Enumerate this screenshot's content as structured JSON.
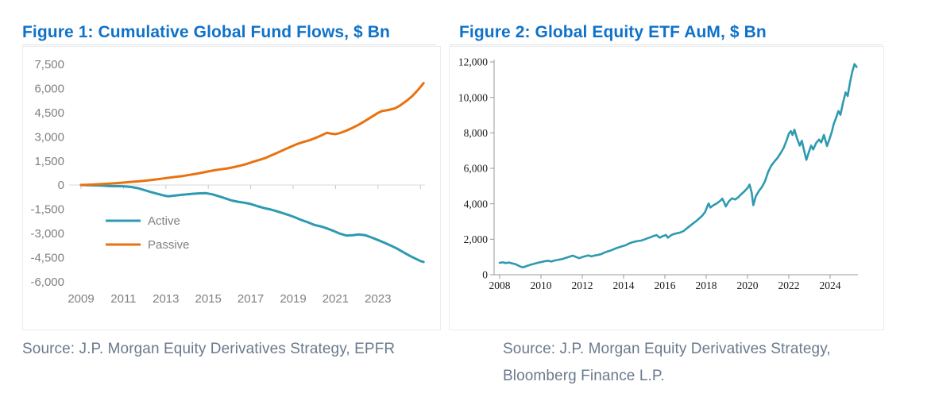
{
  "theme": {
    "title_color": "#0F72C9",
    "source_color": "#6B7A8D",
    "axis_label_gray": "#808080",
    "axis_label_dark": "#1A1A1A",
    "active_color": "#2E9AB0",
    "passive_color": "#E8720F",
    "etf_line_color": "#2E9AB0",
    "rule_color": "#DCDFE3",
    "card_border": "#ECECEC",
    "axis_line_fig1": "#D9D9D9",
    "axis_tick_fig1": "#C9C9C9",
    "axis_line_fig2": "#9A9A9A"
  },
  "figures": [
    {
      "title": "Figure 1: Cumulative Global Fund Flows, $ Bn",
      "source_lines": [
        "Source: J.P. Morgan Equity Derivatives Strategy, EPFR"
      ]
    },
    {
      "title": "Figure 2: Global Equity ETF AuM, $ Bn",
      "source_lines": [
        "Source: J.P. Morgan Equity Derivatives Strategy,",
        "Bloomberg Finance L.P."
      ]
    }
  ],
  "chart_data": [
    {
      "type": "line",
      "title": "Figure 1: Cumulative Global Fund Flows, $ Bn",
      "xlabel": "",
      "ylabel": "",
      "xlim": [
        2008.8,
        2025.3
      ],
      "ylim": [
        -6000,
        7500
      ],
      "x_ticks": [
        2009,
        2011,
        2013,
        2015,
        2017,
        2019,
        2021,
        2023
      ],
      "y_ticks": [
        7500,
        6000,
        4500,
        3000,
        1500,
        0,
        -1500,
        -3000,
        -4500,
        -6000
      ],
      "grid": false,
      "legend": {
        "position": "inside-left",
        "entries": [
          "Active",
          "Passive"
        ]
      },
      "series": [
        {
          "name": "Active",
          "color": "#2E9AB0",
          "points": [
            [
              2009.0,
              0
            ],
            [
              2009.3,
              -12
            ],
            [
              2009.6,
              -22
            ],
            [
              2009.9,
              -30
            ],
            [
              2010.2,
              -55
            ],
            [
              2010.5,
              -75
            ],
            [
              2010.8,
              -70
            ],
            [
              2011.1,
              -92
            ],
            [
              2011.4,
              -130
            ],
            [
              2011.7,
              -200
            ],
            [
              2012.0,
              -320
            ],
            [
              2012.3,
              -440
            ],
            [
              2012.6,
              -550
            ],
            [
              2012.9,
              -650
            ],
            [
              2013.1,
              -700
            ],
            [
              2013.4,
              -660
            ],
            [
              2013.7,
              -615
            ],
            [
              2014.0,
              -580
            ],
            [
              2014.3,
              -545
            ],
            [
              2014.6,
              -520
            ],
            [
              2014.9,
              -510
            ],
            [
              2015.2,
              -580
            ],
            [
              2015.5,
              -700
            ],
            [
              2015.8,
              -830
            ],
            [
              2016.1,
              -960
            ],
            [
              2016.4,
              -1040
            ],
            [
              2016.7,
              -1100
            ],
            [
              2017.0,
              -1180
            ],
            [
              2017.3,
              -1310
            ],
            [
              2017.6,
              -1420
            ],
            [
              2017.9,
              -1510
            ],
            [
              2018.2,
              -1620
            ],
            [
              2018.5,
              -1740
            ],
            [
              2018.8,
              -1870
            ],
            [
              2019.1,
              -2020
            ],
            [
              2019.4,
              -2180
            ],
            [
              2019.7,
              -2320
            ],
            [
              2020.0,
              -2480
            ],
            [
              2020.3,
              -2570
            ],
            [
              2020.6,
              -2700
            ],
            [
              2020.9,
              -2850
            ],
            [
              2021.2,
              -3020
            ],
            [
              2021.5,
              -3140
            ],
            [
              2021.8,
              -3120
            ],
            [
              2022.1,
              -3070
            ],
            [
              2022.4,
              -3120
            ],
            [
              2022.7,
              -3260
            ],
            [
              2023.0,
              -3420
            ],
            [
              2023.3,
              -3580
            ],
            [
              2023.6,
              -3760
            ],
            [
              2023.9,
              -3950
            ],
            [
              2024.2,
              -4180
            ],
            [
              2024.5,
              -4400
            ],
            [
              2024.8,
              -4600
            ],
            [
              2025.0,
              -4720
            ],
            [
              2025.15,
              -4780
            ]
          ]
        },
        {
          "name": "Passive",
          "color": "#E8720F",
          "points": [
            [
              2009.0,
              5
            ],
            [
              2009.3,
              15
            ],
            [
              2009.6,
              30
            ],
            [
              2009.9,
              55
            ],
            [
              2010.2,
              75
            ],
            [
              2010.5,
              100
            ],
            [
              2010.8,
              130
            ],
            [
              2011.1,
              165
            ],
            [
              2011.4,
              195
            ],
            [
              2011.7,
              225
            ],
            [
              2012.0,
              265
            ],
            [
              2012.3,
              310
            ],
            [
              2012.6,
              355
            ],
            [
              2012.9,
              410
            ],
            [
              2013.2,
              465
            ],
            [
              2013.5,
              515
            ],
            [
              2013.8,
              560
            ],
            [
              2014.1,
              625
            ],
            [
              2014.4,
              690
            ],
            [
              2014.7,
              765
            ],
            [
              2015.0,
              845
            ],
            [
              2015.3,
              920
            ],
            [
              2015.6,
              975
            ],
            [
              2015.9,
              1030
            ],
            [
              2016.2,
              1110
            ],
            [
              2016.5,
              1200
            ],
            [
              2016.8,
              1305
            ],
            [
              2017.1,
              1440
            ],
            [
              2017.4,
              1560
            ],
            [
              2017.7,
              1685
            ],
            [
              2018.0,
              1855
            ],
            [
              2018.3,
              2030
            ],
            [
              2018.6,
              2210
            ],
            [
              2018.9,
              2385
            ],
            [
              2019.2,
              2550
            ],
            [
              2019.5,
              2680
            ],
            [
              2019.8,
              2795
            ],
            [
              2020.1,
              2950
            ],
            [
              2020.4,
              3125
            ],
            [
              2020.6,
              3245
            ],
            [
              2020.8,
              3185
            ],
            [
              2021.0,
              3165
            ],
            [
              2021.2,
              3225
            ],
            [
              2021.5,
              3375
            ],
            [
              2021.8,
              3555
            ],
            [
              2022.1,
              3755
            ],
            [
              2022.4,
              3985
            ],
            [
              2022.7,
              4235
            ],
            [
              2023.0,
              4480
            ],
            [
              2023.2,
              4600
            ],
            [
              2023.5,
              4665
            ],
            [
              2023.8,
              4765
            ],
            [
              2024.0,
              4905
            ],
            [
              2024.2,
              5085
            ],
            [
              2024.4,
              5285
            ],
            [
              2024.6,
              5505
            ],
            [
              2024.8,
              5785
            ],
            [
              2025.0,
              6085
            ],
            [
              2025.15,
              6330
            ]
          ]
        }
      ]
    },
    {
      "type": "line",
      "title": "Figure 2: Global Equity ETF AuM, $ Bn",
      "xlabel": "",
      "ylabel": "",
      "xlim": [
        2007.7,
        2025.5
      ],
      "ylim": [
        0,
        12000
      ],
      "x_ticks": [
        2008,
        2010,
        2012,
        2014,
        2016,
        2018,
        2020,
        2022,
        2024
      ],
      "y_ticks": [
        12000,
        10000,
        8000,
        6000,
        4000,
        2000,
        0
      ],
      "grid": false,
      "legend": null,
      "series": [
        {
          "name": "Global Equity ETF AuM",
          "color": "#2E9AB0",
          "points": [
            [
              2008.0,
              670
            ],
            [
              2008.15,
              700
            ],
            [
              2008.3,
              660
            ],
            [
              2008.45,
              690
            ],
            [
              2008.6,
              640
            ],
            [
              2008.75,
              600
            ],
            [
              2008.9,
              520
            ],
            [
              2009.05,
              440
            ],
            [
              2009.15,
              420
            ],
            [
              2009.3,
              490
            ],
            [
              2009.45,
              545
            ],
            [
              2009.6,
              590
            ],
            [
              2009.75,
              645
            ],
            [
              2009.9,
              690
            ],
            [
              2010.05,
              725
            ],
            [
              2010.2,
              765
            ],
            [
              2010.35,
              790
            ],
            [
              2010.5,
              745
            ],
            [
              2010.65,
              800
            ],
            [
              2010.8,
              835
            ],
            [
              2010.95,
              865
            ],
            [
              2011.1,
              910
            ],
            [
              2011.25,
              965
            ],
            [
              2011.4,
              1025
            ],
            [
              2011.55,
              1080
            ],
            [
              2011.7,
              1000
            ],
            [
              2011.85,
              935
            ],
            [
              2012.0,
              995
            ],
            [
              2012.15,
              1050
            ],
            [
              2012.3,
              1090
            ],
            [
              2012.45,
              1035
            ],
            [
              2012.6,
              1085
            ],
            [
              2012.75,
              1115
            ],
            [
              2012.9,
              1155
            ],
            [
              2013.05,
              1235
            ],
            [
              2013.2,
              1305
            ],
            [
              2013.35,
              1355
            ],
            [
              2013.5,
              1425
            ],
            [
              2013.65,
              1500
            ],
            [
              2013.8,
              1555
            ],
            [
              2013.95,
              1610
            ],
            [
              2014.1,
              1660
            ],
            [
              2014.25,
              1755
            ],
            [
              2014.4,
              1820
            ],
            [
              2014.55,
              1865
            ],
            [
              2014.7,
              1905
            ],
            [
              2014.85,
              1925
            ],
            [
              2015.0,
              1985
            ],
            [
              2015.15,
              2050
            ],
            [
              2015.3,
              2110
            ],
            [
              2015.45,
              2185
            ],
            [
              2015.6,
              2235
            ],
            [
              2015.75,
              2085
            ],
            [
              2015.9,
              2180
            ],
            [
              2016.05,
              2240
            ],
            [
              2016.15,
              2085
            ],
            [
              2016.3,
              2230
            ],
            [
              2016.45,
              2300
            ],
            [
              2016.6,
              2340
            ],
            [
              2016.75,
              2385
            ],
            [
              2016.9,
              2460
            ],
            [
              2017.05,
              2600
            ],
            [
              2017.2,
              2740
            ],
            [
              2017.35,
              2880
            ],
            [
              2017.5,
              3010
            ],
            [
              2017.65,
              3160
            ],
            [
              2017.8,
              3320
            ],
            [
              2017.95,
              3540
            ],
            [
              2018.05,
              3840
            ],
            [
              2018.12,
              4020
            ],
            [
              2018.2,
              3790
            ],
            [
              2018.35,
              3920
            ],
            [
              2018.5,
              4010
            ],
            [
              2018.65,
              4140
            ],
            [
              2018.78,
              4290
            ],
            [
              2018.88,
              4050
            ],
            [
              2018.95,
              3850
            ],
            [
              2019.1,
              4140
            ],
            [
              2019.25,
              4310
            ],
            [
              2019.4,
              4240
            ],
            [
              2019.55,
              4370
            ],
            [
              2019.7,
              4540
            ],
            [
              2019.85,
              4700
            ],
            [
              2020.0,
              4890
            ],
            [
              2020.1,
              5080
            ],
            [
              2020.2,
              4650
            ],
            [
              2020.28,
              3920
            ],
            [
              2020.4,
              4420
            ],
            [
              2020.55,
              4720
            ],
            [
              2020.7,
              4950
            ],
            [
              2020.85,
              5280
            ],
            [
              2021.0,
              5800
            ],
            [
              2021.15,
              6150
            ],
            [
              2021.3,
              6380
            ],
            [
              2021.45,
              6580
            ],
            [
              2021.6,
              6850
            ],
            [
              2021.75,
              7150
            ],
            [
              2021.9,
              7600
            ],
            [
              2022.0,
              7950
            ],
            [
              2022.1,
              8100
            ],
            [
              2022.18,
              7880
            ],
            [
              2022.27,
              8180
            ],
            [
              2022.4,
              7680
            ],
            [
              2022.53,
              7280
            ],
            [
              2022.63,
              7560
            ],
            [
              2022.73,
              7050
            ],
            [
              2022.85,
              6480
            ],
            [
              2022.98,
              6950
            ],
            [
              2023.08,
              7280
            ],
            [
              2023.18,
              7060
            ],
            [
              2023.32,
              7420
            ],
            [
              2023.46,
              7620
            ],
            [
              2023.57,
              7460
            ],
            [
              2023.7,
              7880
            ],
            [
              2023.85,
              7260
            ],
            [
              2023.97,
              7650
            ],
            [
              2024.08,
              8050
            ],
            [
              2024.18,
              8520
            ],
            [
              2024.28,
              8820
            ],
            [
              2024.4,
              9230
            ],
            [
              2024.5,
              9020
            ],
            [
              2024.62,
              9680
            ],
            [
              2024.75,
              10280
            ],
            [
              2024.85,
              10080
            ],
            [
              2024.97,
              10880
            ],
            [
              2025.08,
              11480
            ],
            [
              2025.18,
              11880
            ],
            [
              2025.28,
              11720
            ]
          ]
        }
      ]
    }
  ]
}
